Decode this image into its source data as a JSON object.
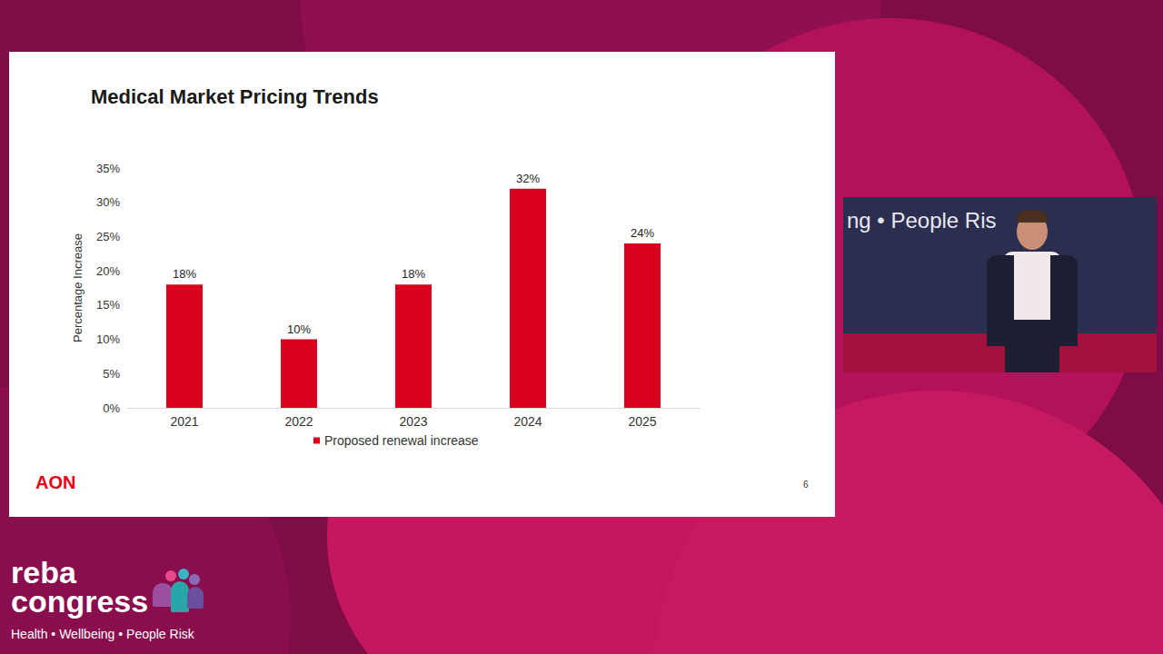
{
  "chart_data": {
    "type": "bar",
    "title": "Medical Market Pricing Trends",
    "y_label": "Percentage Increase",
    "categories": [
      "2021",
      "2022",
      "2023",
      "2024",
      "2025"
    ],
    "series": [
      {
        "name": "Proposed renewal increase",
        "color": "#d9001b",
        "values": [
          18,
          10,
          18,
          32,
          24
        ],
        "value_labels": [
          "18%",
          "10%",
          "18%",
          "32%",
          "24%"
        ]
      }
    ],
    "ylim": [
      0,
      35
    ],
    "yticks": [
      {
        "value": 0,
        "label": "0%"
      },
      {
        "value": 5,
        "label": "5%"
      },
      {
        "value": 10,
        "label": "10%"
      },
      {
        "value": 15,
        "label": "15%"
      },
      {
        "value": 20,
        "label": "20%"
      },
      {
        "value": 25,
        "label": "25%"
      },
      {
        "value": 30,
        "label": "30%"
      },
      {
        "value": 35,
        "label": "35%"
      }
    ],
    "grid": false,
    "legend": "bottom",
    "data_labels": true
  },
  "slide": {
    "logo": "AON",
    "page_number": "6"
  },
  "speaker_video": {
    "backdrop_text": "ng • People Ris"
  },
  "event_logo": {
    "name_lines": [
      "reba",
      "congress"
    ],
    "tagline": "Health • Wellbeing • People Risk"
  }
}
